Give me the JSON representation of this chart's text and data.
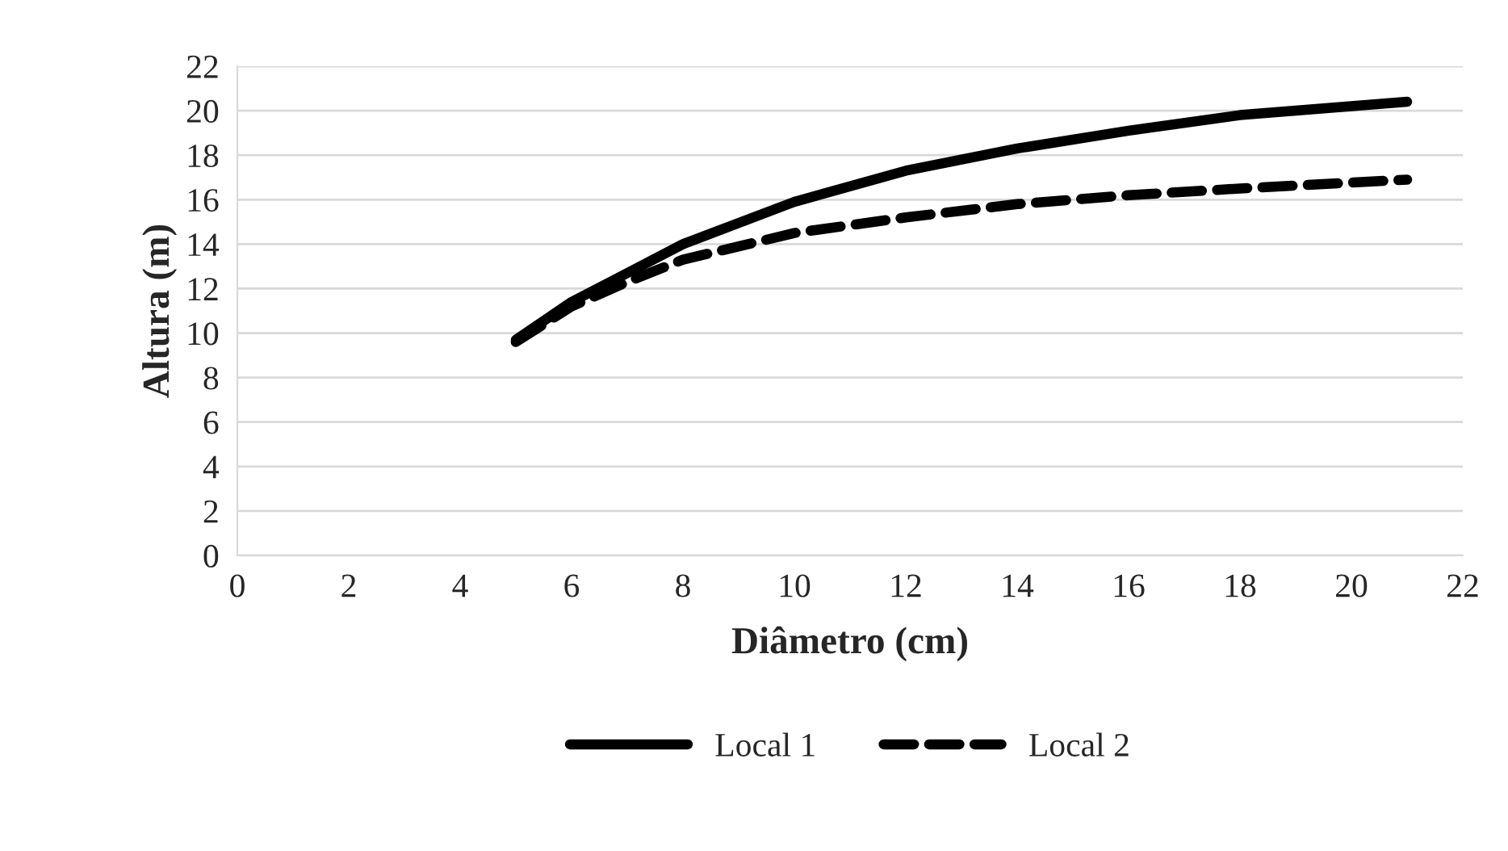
{
  "chart_data": {
    "type": "line",
    "xlabel": "Diâmetro (cm)",
    "ylabel": "Altura (m)",
    "xlim": [
      0,
      22
    ],
    "xticks": [
      0,
      2,
      4,
      6,
      8,
      10,
      12,
      14,
      16,
      18,
      20,
      22
    ],
    "ylim": [
      0,
      22
    ],
    "yticks": [
      0,
      2,
      4,
      6,
      8,
      10,
      12,
      14,
      16,
      18,
      20,
      22
    ],
    "grid": "y",
    "legend": "bottom",
    "marker": "none",
    "series": [
      {
        "name": "Local 1",
        "color": "#000000",
        "line_style": "solid",
        "x": [
          5,
          6,
          7,
          8,
          10,
          12,
          14,
          16,
          18,
          21
        ],
        "values": [
          9.7,
          11.4,
          12.7,
          14.0,
          15.9,
          17.3,
          18.3,
          19.1,
          19.8,
          20.4
        ]
      },
      {
        "name": "Local 2",
        "color": "#000000",
        "line_style": "dashed",
        "x": [
          5,
          6,
          7,
          8,
          10,
          12,
          14,
          16,
          18,
          21
        ],
        "values": [
          9.6,
          11.2,
          12.3,
          13.3,
          14.5,
          15.2,
          15.8,
          16.2,
          16.5,
          16.9
        ]
      }
    ]
  }
}
